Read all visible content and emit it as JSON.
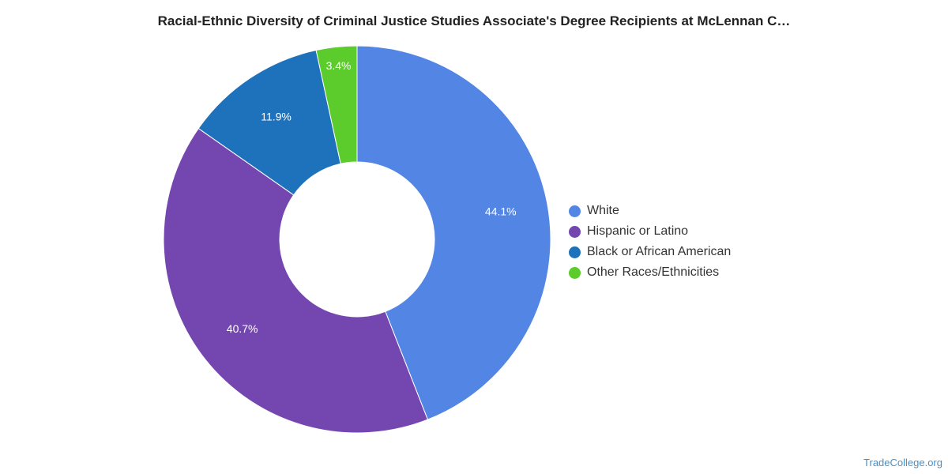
{
  "chart_data": {
    "type": "pie",
    "title": "Racial-Ethnic Diversity of Criminal Justice Studies Associate's Degree Recipients at McLennan C…",
    "categories": [
      "White",
      "Hispanic or Latino",
      "Black or African American",
      "Other Races/Ethnicities"
    ],
    "values": [
      44.1,
      40.7,
      11.9,
      3.4
    ],
    "value_labels": [
      "44.1%",
      "40.7%",
      "11.9%",
      "3.4%"
    ],
    "colors": [
      "#5386e4",
      "#7447b0",
      "#1e72bc",
      "#5ccc2c"
    ],
    "donut": true,
    "legend_position": "right"
  },
  "watermark": "TradeCollege.org"
}
